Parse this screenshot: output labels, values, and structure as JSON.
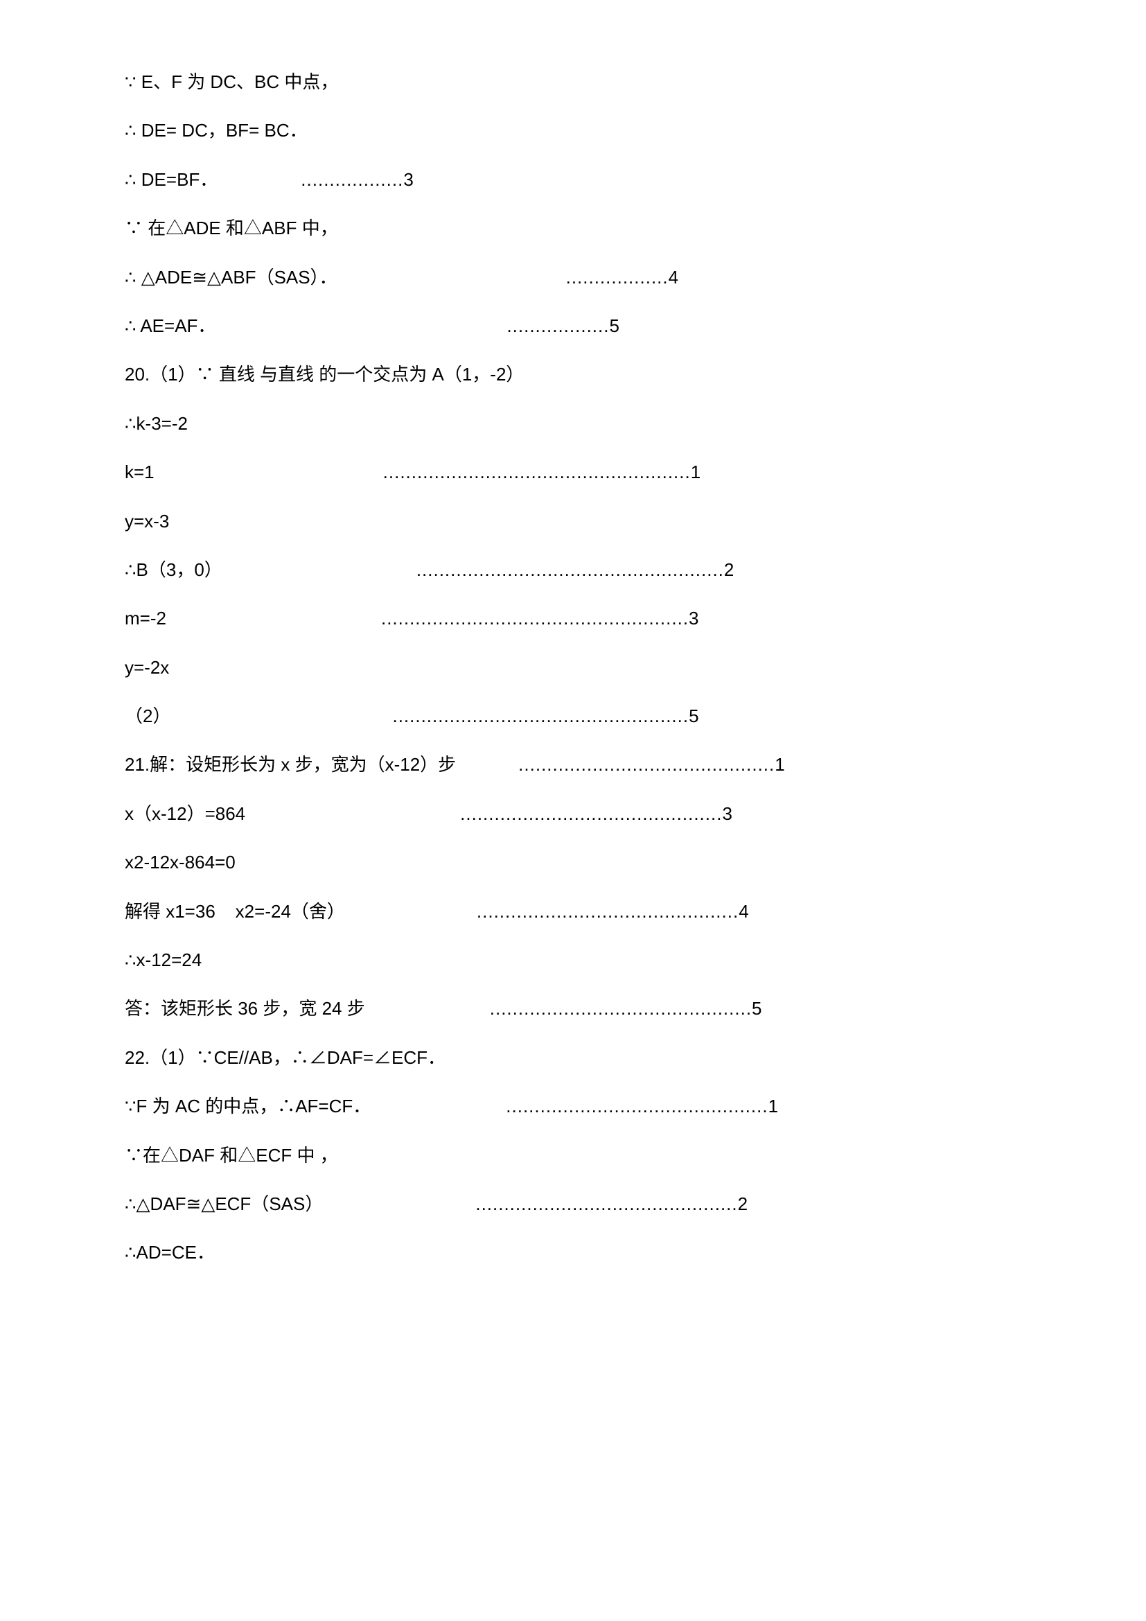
{
  "lines": [
    {
      "left": "∵ E、F 为 DC、BC 中点，",
      "gap": 0,
      "right": ""
    },
    {
      "left": "∴ DE= DC，BF= BC．",
      "gap": 0,
      "right": ""
    },
    {
      "left": "∴ DE=BF．",
      "gap": 120,
      "right": "..................3"
    },
    {
      "left": "∵ 在△ADE 和△ABF 中，",
      "gap": 0,
      "right": ""
    },
    {
      "left": "∴ △ADE≅△ABF（SAS）．",
      "gap": 330,
      "right": "..................4"
    },
    {
      "left": "∴ AE=AF．",
      "gap": 420,
      "right": "..................5"
    },
    {
      "left": "20.（1）∵ 直线 与直线 的一个交点为 A（1，-2）",
      "gap": 0,
      "right": ""
    },
    {
      "left": "∴k-3=-2",
      "gap": 0,
      "right": ""
    },
    {
      "left": "k=1",
      "gap": 330,
      "right": "......................................................1"
    },
    {
      "left": "y=x-3",
      "gap": 0,
      "right": ""
    },
    {
      "left": "∴B（3，0）",
      "gap": 280,
      "right": "......................................................2"
    },
    {
      "left": "m=-2",
      "gap": 310,
      "right": "......................................................3"
    },
    {
      "left": "y=-2x",
      "gap": 0,
      "right": ""
    },
    {
      "left": "（2）",
      "gap": 320,
      "right": "....................................................5"
    },
    {
      "left": "21.解：设矩形长为 x 步，宽为（x-12）步",
      "gap": 90,
      "right": ".............................................1"
    },
    {
      "left": "x（x-12）=864",
      "gap": 310,
      "right": "..............................................3"
    },
    {
      "left": "x2-12x-864=0",
      "gap": 0,
      "right": ""
    },
    {
      "left": "解得 x1=36    x2=-24（舍）",
      "gap": 190,
      "right": "..............................................4"
    },
    {
      "left": "∴x-12=24",
      "gap": 0,
      "right": ""
    },
    {
      "left": "答：该矩形长 36 步，宽 24 步",
      "gap": 180,
      "right": "..............................................5"
    },
    {
      "left": "22.（1）∵CE//AB，∴∠DAF=∠ECF．",
      "gap": 0,
      "right": ""
    },
    {
      "left": "∵F 为 AC 的中点，∴AF=CF．",
      "gap": 195,
      "right": "..............................................1"
    },
    {
      "left": "∵在△DAF 和△ECF 中 ，",
      "gap": 0,
      "right": ""
    },
    {
      "left": "∴△DAF≅△ECF（SAS）",
      "gap": 220,
      "right": "..............................................2"
    },
    {
      "left": "∴AD=CE．",
      "gap": 0,
      "right": ""
    }
  ]
}
